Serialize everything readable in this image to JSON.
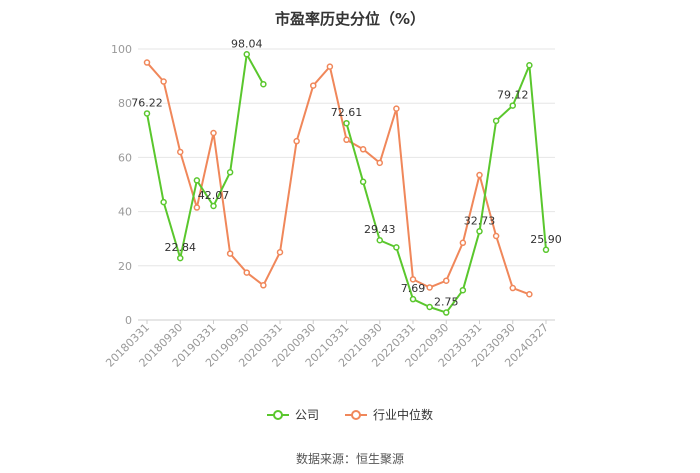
{
  "title": "市盈率历史分位（%）",
  "source": "数据来源：恒生聚源",
  "legend": {
    "company": "公司",
    "industry": "行业中位数"
  },
  "colors": {
    "company": "#5ac72d",
    "industry": "#f0875a",
    "grid": "#e6e6e6",
    "axis": "#999999"
  },
  "chart_data": {
    "type": "line",
    "title": "市盈率历史分位（%）",
    "xlabel": "",
    "ylabel": "",
    "ylim": [
      0,
      100
    ],
    "yticks": [
      0,
      20,
      40,
      60,
      80,
      100
    ],
    "grid": true,
    "legend_position": "bottom",
    "x": [
      "20180331",
      "20180630",
      "20180930",
      "20181231",
      "20190331",
      "20190630",
      "20190930",
      "20191231",
      "20200331",
      "20200630",
      "20200930",
      "20201231",
      "20210331",
      "20210630",
      "20210930",
      "20211231",
      "20220331",
      "20220630",
      "20220930",
      "20221231",
      "20230331",
      "20230630",
      "20230930",
      "20231231",
      "20240327"
    ],
    "xtick_labels": [
      "20180331",
      "20180930",
      "20190331",
      "20190930",
      "20200331",
      "20200930",
      "20210331",
      "20210930",
      "20220331",
      "20220930",
      "20230331",
      "20230930",
      "20240327"
    ],
    "series": [
      {
        "name": "公司",
        "values": [
          76.22,
          43.5,
          22.84,
          51.5,
          42.07,
          54.5,
          98.04,
          87.0,
          null,
          null,
          null,
          null,
          72.61,
          51.0,
          29.43,
          26.8,
          7.69,
          4.8,
          2.75,
          11.0,
          32.73,
          73.5,
          79.12,
          94.0,
          25.9
        ],
        "labels": {
          "0": "76.22",
          "2": "22.84",
          "4": "42.07",
          "6": "98.04",
          "12": "72.61",
          "14": "29.43",
          "16": "7.69",
          "18": "2.75",
          "20": "32.73",
          "22": "79.12",
          "24": "25.90"
        }
      },
      {
        "name": "行业中位数",
        "values": [
          95.0,
          88.0,
          62.0,
          41.5,
          69.0,
          24.5,
          17.5,
          12.8,
          25.0,
          66.0,
          86.5,
          93.5,
          66.5,
          63.0,
          58.0,
          78.0,
          15.0,
          12.0,
          14.5,
          28.5,
          53.5,
          31.0,
          11.8,
          9.5,
          null
        ]
      }
    ]
  }
}
